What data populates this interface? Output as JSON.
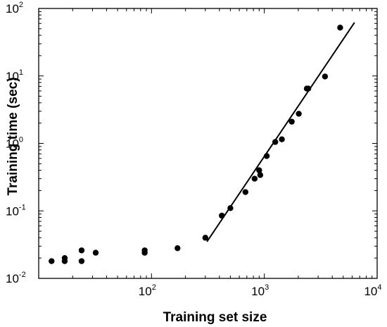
{
  "chart_data": {
    "type": "scatter",
    "title": "",
    "xlabel": "Training set size",
    "ylabel": "Training time (sec)",
    "xscale": "log",
    "yscale": "log",
    "xlim": [
      10,
      10000
    ],
    "ylim": [
      0.01,
      100
    ],
    "grid": false,
    "x_ticks": [
      {
        "base": "10",
        "exp": "2",
        "value": 100
      },
      {
        "base": "10",
        "exp": "3",
        "value": 1000
      },
      {
        "base": "10",
        "exp": "4",
        "value": 10000
      }
    ],
    "y_ticks": [
      {
        "base": "10",
        "exp": "-2",
        "value": 0.01
      },
      {
        "base": "10",
        "exp": "-1",
        "value": 0.1
      },
      {
        "base": "10",
        "exp": "0",
        "value": 1
      },
      {
        "base": "10",
        "exp": "1",
        "value": 10
      },
      {
        "base": "10",
        "exp": "2",
        "value": 100
      }
    ],
    "points": [
      {
        "x": 13,
        "y": 0.018
      },
      {
        "x": 17,
        "y": 0.02
      },
      {
        "x": 17,
        "y": 0.018
      },
      {
        "x": 24,
        "y": 0.026
      },
      {
        "x": 24,
        "y": 0.018
      },
      {
        "x": 32,
        "y": 0.024
      },
      {
        "x": 87,
        "y": 0.026
      },
      {
        "x": 87,
        "y": 0.024
      },
      {
        "x": 170,
        "y": 0.028
      },
      {
        "x": 300,
        "y": 0.04
      },
      {
        "x": 420,
        "y": 0.085
      },
      {
        "x": 500,
        "y": 0.11
      },
      {
        "x": 680,
        "y": 0.19
      },
      {
        "x": 820,
        "y": 0.3
      },
      {
        "x": 900,
        "y": 0.4
      },
      {
        "x": 920,
        "y": 0.34
      },
      {
        "x": 1050,
        "y": 0.65
      },
      {
        "x": 1250,
        "y": 1.05
      },
      {
        "x": 1430,
        "y": 1.15
      },
      {
        "x": 1750,
        "y": 2.1
      },
      {
        "x": 2020,
        "y": 2.75
      },
      {
        "x": 2380,
        "y": 6.5
      },
      {
        "x": 2450,
        "y": 6.5
      },
      {
        "x": 3450,
        "y": 9.8
      },
      {
        "x": 4700,
        "y": 52
      }
    ],
    "fit_line": {
      "x": [
        310,
        6300
      ],
      "y": [
        0.035,
        62
      ]
    }
  }
}
